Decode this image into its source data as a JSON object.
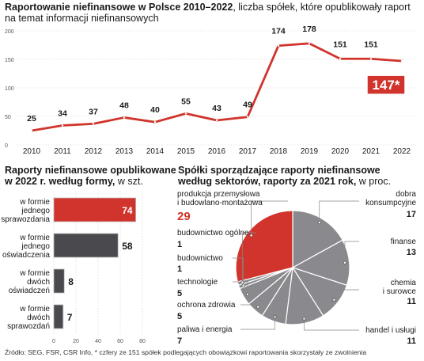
{
  "header": {
    "title_bold": "Raportowanie niefinansowe w Polsce 2010–2022",
    "title_rest": ", liczba spółek, które opublikowały raport",
    "title_line2": "na temat informacji niefinansowych"
  },
  "colors": {
    "accent": "#d0342c",
    "gray": "#6f6f73",
    "dark": "#4a4a4e",
    "pie_gray": "#8a8a8e"
  },
  "chart_data": [
    {
      "type": "line",
      "x": [
        "2010",
        "2011",
        "2012",
        "2013",
        "2014",
        "2015",
        "2016",
        "2017",
        "2018",
        "2019",
        "2020",
        "2021",
        "2022"
      ],
      "series": [
        {
          "values": [
            25,
            34,
            37,
            48,
            40,
            55,
            43,
            49,
            174,
            178,
            151,
            151,
            147
          ]
        }
      ],
      "data_labels": [
        "25",
        "34",
        "37",
        "48",
        "40",
        "55",
        "43",
        "49",
        "174",
        "178",
        "151",
        "151",
        "147*"
      ],
      "y_ticks": [
        "200",
        "150",
        "100",
        "50",
        "0"
      ],
      "ylim": [
        0,
        200
      ],
      "grid": true
    },
    {
      "type": "bar",
      "title": "Raporty niefinansowe opublikowane w 2022 r. według formy,",
      "unit": "w szt.",
      "categories": [
        "w formie jednego sprawozdania",
        "w formie jednego oświadczenia",
        "w formie dwóch oświadczeń",
        "w formie dwóch sprawozdań"
      ],
      "values": [
        74,
        58,
        8,
        7
      ],
      "x_ticks": [
        "0",
        "20",
        "40",
        "60",
        "80"
      ],
      "xlim": [
        0,
        80
      ]
    },
    {
      "type": "pie",
      "title": "Spółki sporządzające raporty niefinansowe według sektorów, raporty za 2021 rok,",
      "unit": "w proc.",
      "categories": [
        "produkcja przemysłowa i budowlano-montażowa",
        "dobra konsumpcyjne",
        "finanse",
        "chemia i surowce",
        "handel i usługi",
        "paliwa i energia",
        "ochrona zdrowia",
        "technologie",
        "budownictwo",
        "budownictwo ogólne"
      ],
      "values": [
        29,
        17,
        13,
        11,
        11,
        7,
        5,
        5,
        1,
        1
      ]
    }
  ],
  "line_labels": {
    "ticks": [
      "200",
      "150",
      "100",
      "50",
      "0"
    ]
  },
  "bar_section": {
    "title_bold": "Raporty niefinansowe opublikowane",
    "title_bold2": "w 2022 r. według formy,",
    "title_light": " w szt.",
    "labels": [
      [
        "w formie",
        "jednego",
        "sprawozdania"
      ],
      [
        "w formie",
        "jednego",
        "oświadczenia"
      ],
      [
        "w formie",
        "dwóch",
        "oświadczeń"
      ],
      [
        "w formie",
        "dwóch",
        "sprawozdań"
      ]
    ]
  },
  "pie_section": {
    "title_line1": "Spółki sporządzające raporty niefinansowe",
    "title_bold2": "według sektorów, raporty za 2021 rok,",
    "title_light": " w proc.",
    "labels": {
      "produkcja": [
        "produkcja przemysłowa",
        "i budowlano-montażowa"
      ],
      "dobra": [
        "dobra",
        "konsumpcyjne"
      ],
      "finanse": [
        "finanse"
      ],
      "chemia": [
        "chemia",
        "i surowce"
      ],
      "handel": [
        "handel i usługi"
      ],
      "paliwa": [
        "paliwa i energia"
      ],
      "ochrona": [
        "ochrona zdrowia"
      ],
      "technologie": [
        "technologie"
      ],
      "budownictwo": [
        "budownictwo"
      ],
      "budownictwo_ogolne": [
        "budownictwo ogólne"
      ]
    }
  },
  "footer": {
    "text": "Źródło: SEG, FSR, CSR Info, * czfery ze 151 spółek podlegających obowiązkowi raportowania skorzystały ze zwolnienia"
  }
}
